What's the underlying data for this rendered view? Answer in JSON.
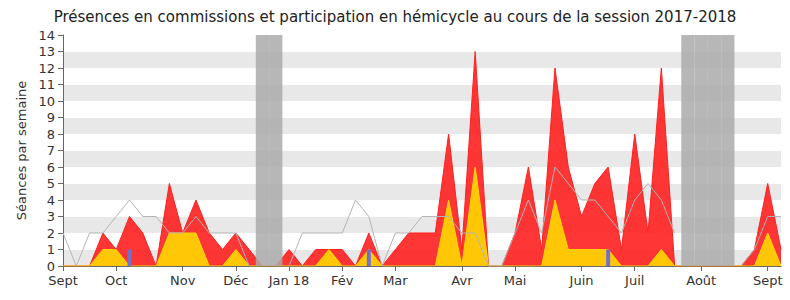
{
  "chart_data": {
    "type": "area",
    "title": "Présences en commissions et participation en hémicycle au cours de la session 2017-2018",
    "y_label": "Séances par semaine",
    "categories": [
      "Sept",
      null,
      null,
      null,
      "Oct",
      null,
      null,
      null,
      null,
      "Nov",
      null,
      null,
      null,
      "Déc",
      null,
      null,
      null,
      "Jan 18",
      null,
      null,
      null,
      "Fév",
      null,
      null,
      null,
      "Mar",
      null,
      null,
      null,
      null,
      "Avr",
      null,
      null,
      null,
      "Mai",
      null,
      null,
      null,
      null,
      "Juin",
      null,
      null,
      null,
      "Juil",
      null,
      null,
      null,
      null,
      "Août",
      null,
      null,
      null,
      null,
      "Sept",
      null
    ],
    "series": [
      {
        "type": "area",
        "color": "#ff2020",
        "values": [
          0,
          0,
          0,
          2,
          1,
          3,
          2,
          0,
          5,
          2,
          4,
          2,
          1,
          2,
          1,
          0,
          0,
          1,
          0,
          1,
          1,
          1,
          0,
          2,
          0,
          1,
          2,
          2,
          2,
          8,
          1,
          13,
          0,
          0,
          2,
          6,
          1,
          12,
          6,
          3,
          5,
          6,
          1,
          8,
          2,
          12,
          0,
          0,
          0,
          0,
          0,
          0,
          1,
          5,
          1
        ]
      },
      {
        "type": "area",
        "color": "#ffd700",
        "values": [
          0,
          0,
          0,
          1,
          1,
          0,
          0,
          0,
          2,
          2,
          2,
          0,
          0,
          1,
          0,
          0,
          0,
          0,
          0,
          0,
          1,
          0,
          0,
          1,
          0,
          0,
          0,
          0,
          0,
          4,
          0,
          6,
          0,
          0,
          0,
          0,
          0,
          4,
          1,
          1,
          1,
          1,
          0,
          0,
          0,
          1,
          0,
          0,
          0,
          0,
          0,
          0,
          0,
          2,
          0
        ]
      },
      {
        "type": "line",
        "color": "#b4b4b4",
        "values": [
          2,
          0,
          2,
          2,
          3,
          4,
          3,
          3,
          2,
          2,
          3,
          2,
          2,
          2,
          0,
          null,
          null,
          0,
          2,
          2,
          2,
          2,
          4,
          3,
          0,
          2,
          2,
          3,
          3,
          3,
          2,
          2,
          0,
          0,
          2,
          4,
          2,
          6,
          5,
          4,
          4,
          3,
          2,
          4,
          5,
          4,
          2,
          null,
          null,
          null,
          null,
          0,
          1,
          3,
          3
        ]
      },
      {
        "type": "bar",
        "color": "#7070d0",
        "values": [
          null,
          null,
          null,
          null,
          null,
          1,
          null,
          null,
          null,
          null,
          null,
          null,
          null,
          null,
          null,
          null,
          null,
          null,
          null,
          null,
          null,
          null,
          null,
          1,
          null,
          null,
          null,
          null,
          null,
          null,
          null,
          null,
          null,
          null,
          null,
          null,
          null,
          null,
          null,
          null,
          null,
          1,
          null,
          null,
          null,
          null,
          null,
          null,
          null,
          null,
          null,
          null,
          null,
          null,
          null
        ]
      },
      {
        "type": "bar",
        "color": "#aaaaaa",
        "values": [
          null,
          null,
          null,
          null,
          null,
          null,
          null,
          null,
          null,
          null,
          null,
          null,
          null,
          null,
          null,
          14,
          14,
          null,
          null,
          null,
          null,
          null,
          null,
          null,
          null,
          null,
          null,
          null,
          null,
          null,
          null,
          null,
          null,
          null,
          null,
          null,
          null,
          null,
          null,
          null,
          null,
          null,
          null,
          null,
          null,
          null,
          null,
          14,
          14,
          14,
          14,
          null,
          null,
          null,
          null
        ]
      }
    ],
    "ylim": [
      0,
      14
    ],
    "yticks": [
      0,
      1,
      2,
      3,
      4,
      5,
      6,
      7,
      8,
      9,
      10,
      11,
      12,
      13,
      14
    ],
    "grid": true
  }
}
